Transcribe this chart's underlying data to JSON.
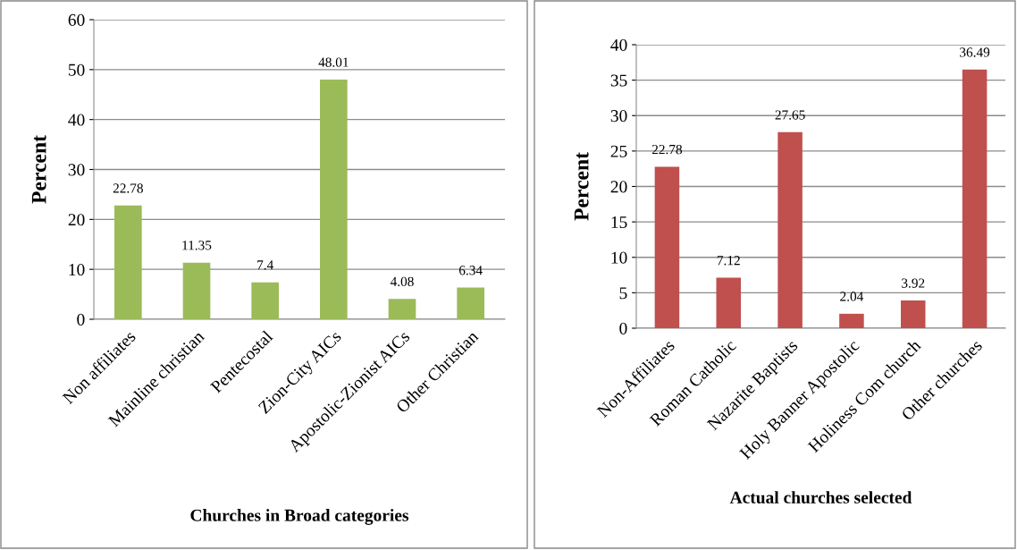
{
  "chart_data": [
    {
      "type": "bar",
      "xlabel": "Churches in Broad categories",
      "ylabel": "Percent",
      "categories": [
        "Non affiliates",
        "Mainline christian",
        "Pentecostal",
        "Zion-City AICs",
        "Apostolic-Zionist AICs",
        "Other Christian"
      ],
      "values": [
        22.78,
        11.35,
        7.4,
        48.01,
        4.08,
        6.34
      ],
      "color": "#9bbb59",
      "ylim": [
        0,
        60
      ],
      "yticks": [
        0,
        10,
        20,
        30,
        40,
        50,
        60
      ],
      "grid": "y",
      "data_labels": true
    },
    {
      "type": "bar",
      "xlabel": "Actual churches selected",
      "ylabel": "Percent",
      "categories": [
        "Non-Affiliates",
        "Roman Catholic",
        "Nazarite Baptists",
        "Holy Banner Apostolic",
        "Holiness Com church",
        "Other churches"
      ],
      "values": [
        22.78,
        7.12,
        27.65,
        2.04,
        3.92,
        36.49
      ],
      "color": "#c0504d",
      "ylim": [
        0,
        40
      ],
      "yticks": [
        0,
        5,
        10,
        15,
        20,
        25,
        30,
        35,
        40
      ],
      "grid": "y",
      "data_labels": true
    }
  ]
}
